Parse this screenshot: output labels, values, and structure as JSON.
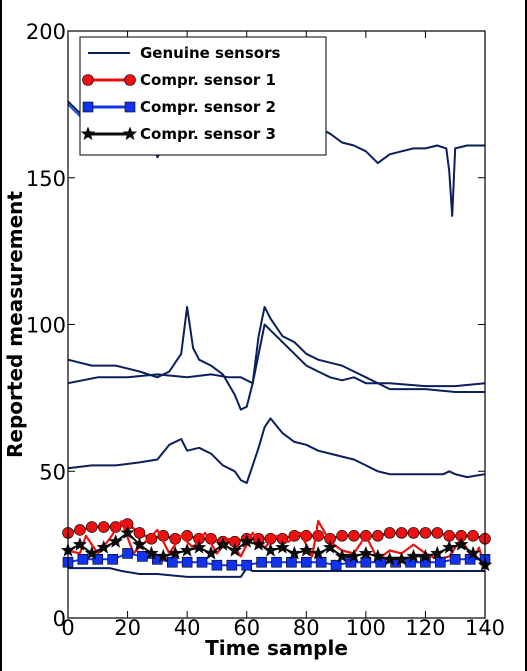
{
  "chart_data": {
    "type": "line",
    "xlabel": "Time sample",
    "ylabel": "Reported measurement",
    "xlim": [
      0,
      140
    ],
    "ylim": [
      0,
      200
    ],
    "xticks": [
      "0",
      "20",
      "40",
      "60",
      "80",
      "100",
      "120",
      "140"
    ],
    "yticks": [
      "0",
      "50",
      "100",
      "150",
      "200"
    ],
    "legend_position": "top-left",
    "legend": [
      "Genuine sensors",
      "Compr. sensor 1",
      "Compr. sensor 2",
      "Compr. sensor 3"
    ],
    "series": [
      {
        "name": "Genuine sensors",
        "color": "#0a1f5c",
        "marker": "none",
        "x": [
          0,
          4,
          8,
          12,
          16,
          20,
          24,
          28,
          30,
          34,
          38,
          40,
          44,
          48,
          52,
          56,
          60,
          64,
          68,
          72,
          76,
          80,
          84,
          88,
          92,
          96,
          100,
          104,
          108,
          112,
          116,
          120,
          124,
          127,
          128,
          129,
          130,
          134,
          140
        ],
        "y": [
          176,
          172,
          171,
          168,
          170,
          168,
          170,
          165,
          157,
          164,
          166,
          161,
          163,
          165,
          164,
          166,
          163,
          165,
          167,
          168,
          166,
          165,
          167,
          165,
          162,
          161,
          159,
          155,
          158,
          159,
          160,
          160,
          161,
          160,
          152,
          137,
          160,
          161,
          161
        ]
      },
      {
        "name": "Genuine sensors",
        "color": "#1a55d9",
        "marker": "none",
        "x": [
          0,
          5,
          10,
          15,
          20,
          25,
          30,
          35,
          40,
          45,
          50,
          55,
          60,
          65,
          70,
          75,
          80
        ],
        "y": [
          175,
          170,
          171,
          169,
          168,
          171,
          160,
          172,
          164,
          169,
          166,
          163,
          167,
          168,
          167,
          166,
          165
        ]
      },
      {
        "name": "Genuine sensors",
        "color": "#0a1f5c",
        "marker": "none",
        "x": [
          0,
          8,
          16,
          24,
          30,
          34,
          38,
          40,
          42,
          44,
          48,
          52,
          56,
          58,
          60,
          62,
          64,
          66,
          68,
          72,
          76,
          80,
          84,
          88,
          92,
          96,
          100,
          104,
          108,
          112,
          120,
          130,
          140
        ],
        "y": [
          88,
          86,
          86,
          84,
          82,
          84,
          90,
          106,
          92,
          88,
          86,
          83,
          76,
          71,
          72,
          80,
          96,
          106,
          102,
          96,
          94,
          90,
          88,
          87,
          86,
          84,
          82,
          80,
          78,
          78,
          78,
          77,
          77
        ]
      },
      {
        "name": "Genuine sensors",
        "color": "#0a1f5c",
        "marker": "none",
        "x": [
          0,
          10,
          20,
          30,
          40,
          48,
          54,
          58,
          62,
          66,
          70,
          76,
          80,
          84,
          88,
          92,
          96,
          100,
          104,
          108,
          120,
          130,
          140
        ],
        "y": [
          80,
          82,
          82,
          83,
          82,
          83,
          82,
          82,
          80,
          100,
          96,
          90,
          86,
          84,
          82,
          81,
          82,
          80,
          80,
          80,
          79,
          79,
          80
        ]
      },
      {
        "name": "Genuine sensors",
        "color": "#0a1f5c",
        "marker": "none",
        "x": [
          0,
          8,
          16,
          24,
          30,
          34,
          38,
          40,
          44,
          48,
          52,
          56,
          58,
          60,
          62,
          64,
          66,
          68,
          72,
          76,
          80,
          84,
          88,
          92,
          96,
          100,
          104,
          108,
          112,
          120,
          126,
          128,
          130,
          134,
          140
        ],
        "y": [
          51,
          52,
          52,
          53,
          54,
          59,
          61,
          57,
          58,
          56,
          52,
          50,
          47,
          46,
          52,
          58,
          65,
          68,
          63,
          60,
          59,
          57,
          56,
          55,
          54,
          52,
          50,
          49,
          49,
          49,
          49,
          50,
          49,
          48,
          49
        ]
      },
      {
        "name": "Genuine sensors",
        "color": "#0a1f5c",
        "marker": "none",
        "x": [
          0,
          10,
          14,
          18,
          24,
          30,
          40,
          50,
          58,
          60,
          62,
          70,
          80,
          90,
          100,
          110,
          120,
          130,
          140
        ],
        "y": [
          17,
          17,
          17,
          16,
          15,
          15,
          14,
          14,
          14,
          17,
          16,
          16,
          16,
          16,
          16,
          16,
          16,
          16,
          16
        ]
      },
      {
        "name": "Compr. sensor 1",
        "color": "#ee1111",
        "marker": "circle",
        "x": [
          0,
          4,
          8,
          12,
          16,
          20,
          24,
          28,
          32,
          36,
          40,
          44,
          48,
          52,
          56,
          60,
          64,
          68,
          72,
          76,
          80,
          84,
          88,
          92,
          96,
          100,
          104,
          108,
          112,
          116,
          120,
          124,
          128,
          132,
          136,
          140
        ],
        "y": [
          29,
          30,
          31,
          31,
          31,
          32,
          29,
          27,
          28,
          27,
          28,
          27,
          27,
          26,
          26,
          27,
          27,
          27,
          27,
          28,
          28,
          28,
          27,
          28,
          28,
          28,
          28,
          29,
          29,
          29,
          29,
          29,
          28,
          28,
          28,
          27
        ]
      },
      {
        "name": "Compr. sensor 1",
        "color": "#ee1111",
        "marker": "none",
        "x": [
          0,
          4,
          6,
          10,
          14,
          18,
          22,
          26,
          30,
          34,
          38,
          42,
          46,
          50,
          54,
          58,
          62,
          66,
          70,
          74,
          78,
          82,
          84,
          88,
          92,
          96,
          100,
          104,
          108,
          112,
          116,
          120,
          124,
          128,
          132,
          136,
          138,
          140
        ],
        "y": [
          23,
          22,
          28,
          22,
          27,
          33,
          22,
          26,
          30,
          22,
          28,
          24,
          29,
          22,
          27,
          21,
          29,
          24,
          28,
          26,
          29,
          21,
          33,
          26,
          23,
          22,
          28,
          20,
          23,
          22,
          25,
          22,
          20,
          21,
          27,
          20,
          24,
          17
        ]
      },
      {
        "name": "Compr. sensor 2",
        "color": "#1133ee",
        "marker": "square",
        "x": [
          0,
          5,
          10,
          15,
          20,
          25,
          30,
          35,
          40,
          45,
          50,
          55,
          60,
          65,
          70,
          75,
          80,
          85,
          90,
          95,
          100,
          105,
          110,
          115,
          120,
          125,
          130,
          135,
          140
        ],
        "y": [
          19,
          20,
          20,
          20,
          22,
          21,
          20,
          19,
          19,
          19,
          18,
          18,
          18,
          19,
          19,
          19,
          19,
          19,
          18,
          19,
          19,
          19,
          19,
          19,
          19,
          19,
          20,
          20,
          20
        ]
      },
      {
        "name": "Compr. sensor 3",
        "color": "#0a0a0a",
        "marker": "star",
        "x": [
          0,
          4,
          8,
          12,
          16,
          20,
          24,
          28,
          32,
          36,
          40,
          44,
          48,
          52,
          56,
          60,
          64,
          68,
          72,
          76,
          80,
          84,
          88,
          92,
          96,
          100,
          104,
          108,
          112,
          116,
          120,
          124,
          128,
          132,
          136,
          140
        ],
        "y": [
          23,
          25,
          22,
          24,
          26,
          29,
          25,
          22,
          21,
          22,
          23,
          24,
          22,
          25,
          23,
          26,
          25,
          23,
          24,
          22,
          23,
          22,
          24,
          21,
          21,
          22,
          21,
          20,
          20,
          21,
          21,
          22,
          24,
          25,
          22,
          18
        ]
      }
    ]
  }
}
